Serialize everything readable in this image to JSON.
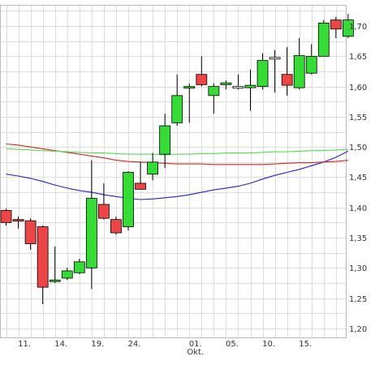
{
  "chart_data": {
    "type": "candlestick",
    "title": "",
    "xlabel": "",
    "ylabel": "",
    "ylim": [
      1.185,
      1.735
    ],
    "y_ticks": [
      "1,20",
      "1,25",
      "1,30",
      "1,35",
      "1,40",
      "1,45",
      "1,50",
      "1,55",
      "1,60",
      "1,65",
      "1,70"
    ],
    "x_ticks": [
      {
        "index": 1.5,
        "label": "11.",
        "sub": ""
      },
      {
        "index": 4.5,
        "label": "14.",
        "sub": ""
      },
      {
        "index": 7.5,
        "label": "19.",
        "sub": ""
      },
      {
        "index": 10.5,
        "label": "24.",
        "sub": ""
      },
      {
        "index": 15.5,
        "label": "01.",
        "sub": "Okt."
      },
      {
        "index": 18.5,
        "label": "05.",
        "sub": ""
      },
      {
        "index": 21.5,
        "label": "10.",
        "sub": ""
      },
      {
        "index": 24.5,
        "label": "15.",
        "sub": ""
      }
    ],
    "colors": {
      "up": "#33dd33",
      "down": "#ee4444",
      "doji": "#ffffff",
      "ma_short": "#2222cc",
      "ma_mid": "#dd2222",
      "ma_long": "#55dd55"
    },
    "candles": [
      {
        "open": 1.395,
        "high": 1.398,
        "low": 1.37,
        "close": 1.375
      },
      {
        "open": 1.38,
        "high": 1.385,
        "low": 1.365,
        "close": 1.378
      },
      {
        "open": 1.378,
        "high": 1.382,
        "low": 1.33,
        "close": 1.34
      },
      {
        "open": 1.368,
        "high": 1.37,
        "low": 1.24,
        "close": 1.268
      },
      {
        "open": 1.278,
        "high": 1.335,
        "low": 1.275,
        "close": 1.28
      },
      {
        "open": 1.283,
        "high": 1.3,
        "low": 1.28,
        "close": 1.295
      },
      {
        "open": 1.292,
        "high": 1.315,
        "low": 1.29,
        "close": 1.31
      },
      {
        "open": 1.3,
        "high": 1.478,
        "low": 1.265,
        "close": 1.415
      },
      {
        "open": 1.405,
        "high": 1.44,
        "low": 1.38,
        "close": 1.382
      },
      {
        "open": 1.38,
        "high": 1.385,
        "low": 1.355,
        "close": 1.358
      },
      {
        "open": 1.368,
        "high": 1.46,
        "low": 1.362,
        "close": 1.458
      },
      {
        "open": 1.44,
        "high": 1.475,
        "low": 1.43,
        "close": 1.43
      },
      {
        "open": 1.455,
        "high": 1.49,
        "low": 1.445,
        "close": 1.475
      },
      {
        "open": 1.488,
        "high": 1.555,
        "low": 1.465,
        "close": 1.535
      },
      {
        "open": 1.54,
        "high": 1.62,
        "low": 1.535,
        "close": 1.585
      },
      {
        "open": 1.598,
        "high": 1.605,
        "low": 1.54,
        "close": 1.6
      },
      {
        "open": 1.62,
        "high": 1.65,
        "low": 1.6,
        "close": 1.603
      },
      {
        "open": 1.585,
        "high": 1.605,
        "low": 1.555,
        "close": 1.6
      },
      {
        "open": 1.603,
        "high": 1.61,
        "low": 1.595,
        "close": 1.606
      },
      {
        "open": 1.6,
        "high": 1.62,
        "low": 1.595,
        "close": 1.6
      },
      {
        "open": 1.598,
        "high": 1.628,
        "low": 1.56,
        "close": 1.602
      },
      {
        "open": 1.6,
        "high": 1.655,
        "low": 1.595,
        "close": 1.643
      },
      {
        "open": 1.648,
        "high": 1.66,
        "low": 1.59,
        "close": 1.648
      },
      {
        "open": 1.62,
        "high": 1.665,
        "low": 1.585,
        "close": 1.602
      },
      {
        "open": 1.598,
        "high": 1.68,
        "low": 1.595,
        "close": 1.651
      },
      {
        "open": 1.622,
        "high": 1.67,
        "low": 1.62,
        "close": 1.65
      },
      {
        "open": 1.65,
        "high": 1.71,
        "low": 1.65,
        "close": 1.705
      },
      {
        "open": 1.71,
        "high": 1.715,
        "low": 1.68,
        "close": 1.695
      },
      {
        "open": 1.683,
        "high": 1.72,
        "low": 1.68,
        "close": 1.71
      }
    ],
    "series": [
      {
        "values": [
          1.455,
          1.452,
          1.448,
          1.443,
          1.437,
          1.432,
          1.428,
          1.425,
          1.421,
          1.418,
          1.415,
          1.413,
          1.414,
          1.416,
          1.418,
          1.421,
          1.425,
          1.429,
          1.432,
          1.435,
          1.44,
          1.447,
          1.453,
          1.458,
          1.463,
          1.469,
          1.475,
          1.483,
          1.493
        ]
      },
      {
        "values": [
          1.505,
          1.503,
          1.5,
          1.497,
          1.494,
          1.491,
          1.488,
          1.485,
          1.482,
          1.478,
          1.476,
          1.475,
          1.474,
          1.473,
          1.472,
          1.472,
          1.472,
          1.471,
          1.471,
          1.471,
          1.471,
          1.471,
          1.472,
          1.473,
          1.474,
          1.474,
          1.475,
          1.476,
          1.478
        ]
      },
      {
        "values": [
          1.497,
          1.496,
          1.495,
          1.494,
          1.493,
          1.492,
          1.491,
          1.49,
          1.49,
          1.489,
          1.488,
          1.488,
          1.488,
          1.487,
          1.488,
          1.488,
          1.489,
          1.489,
          1.49,
          1.49,
          1.49,
          1.491,
          1.492,
          1.492,
          1.493,
          1.494,
          1.494,
          1.495,
          1.496
        ]
      }
    ]
  }
}
